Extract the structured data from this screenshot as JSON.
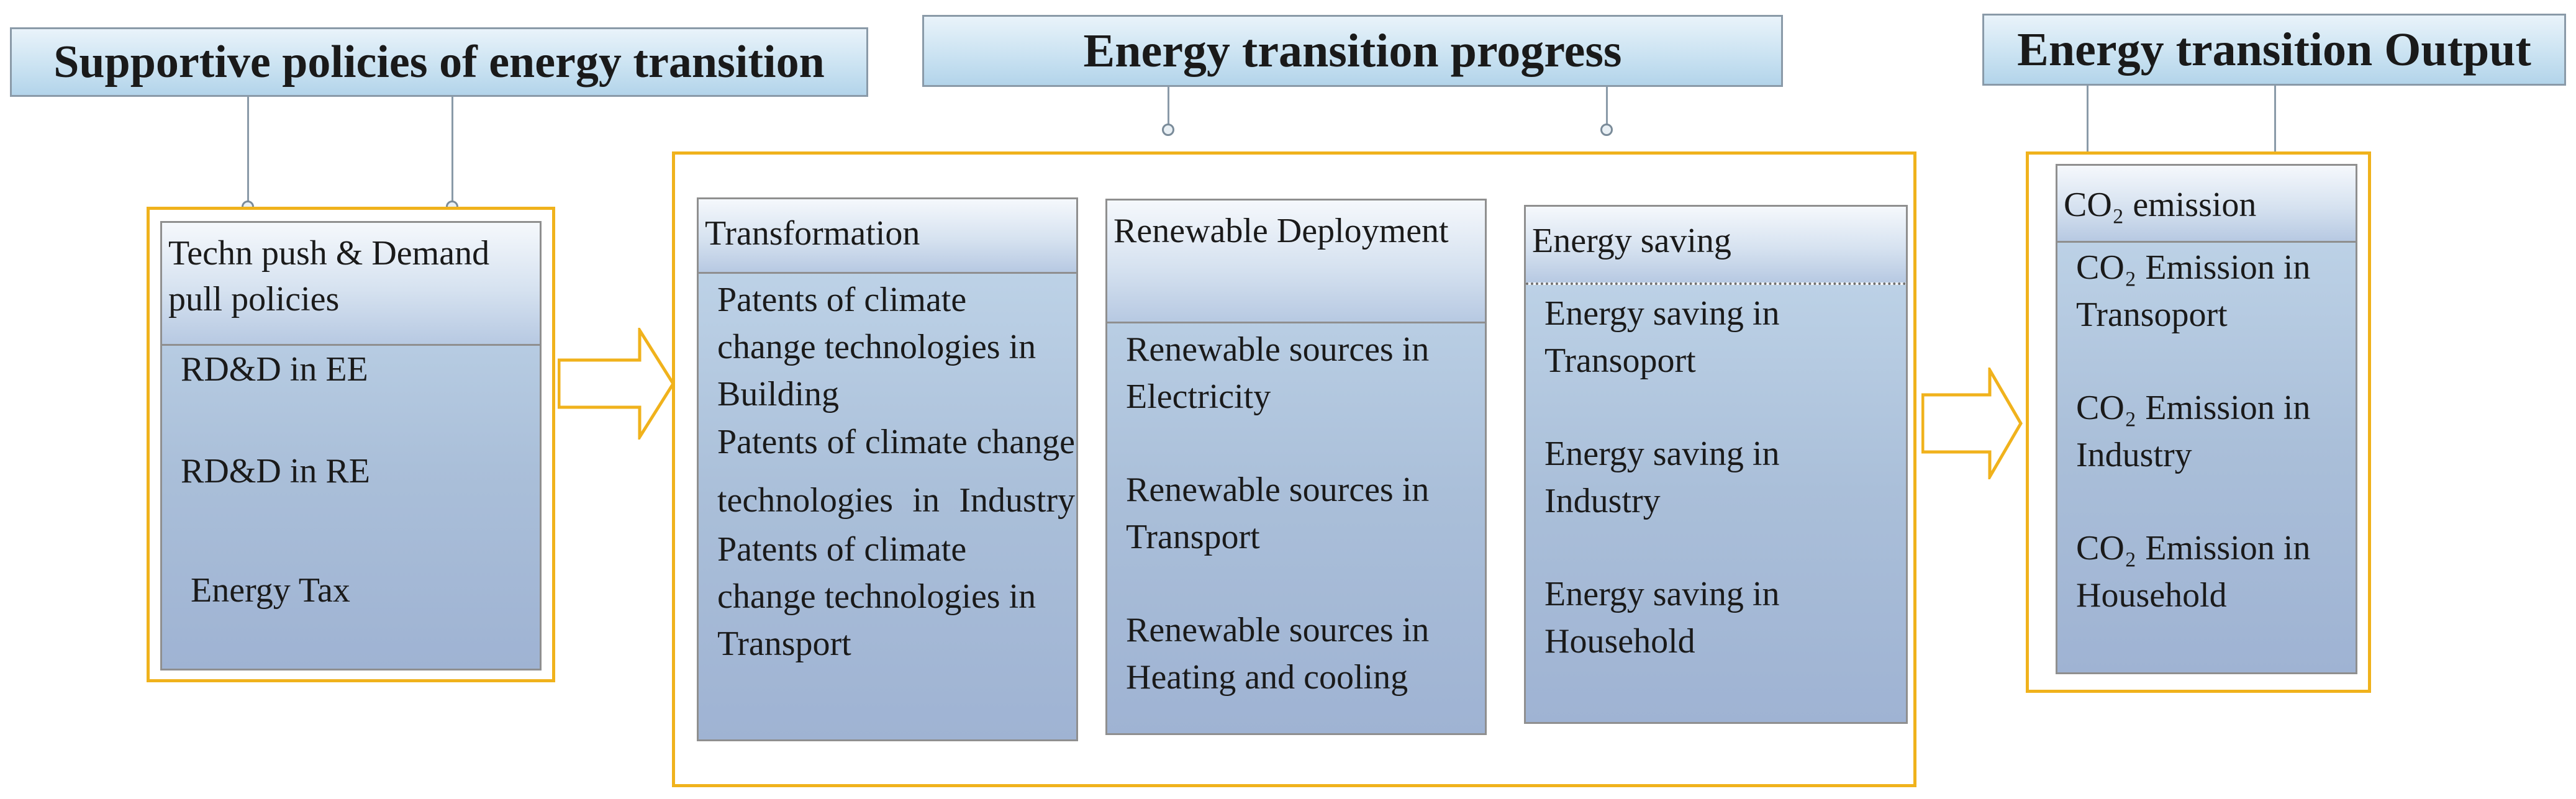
{
  "headers": {
    "policies": "Supportive policies of energy transition",
    "progress": "Energy transition progress",
    "output": "Energy transition Output"
  },
  "policies_card": {
    "title": "Techn push & Demand pull policies",
    "items": [
      "RD&D in EE",
      "RD&D in RE",
      "Energy Tax"
    ]
  },
  "transformation_card": {
    "title": "Transformation",
    "items": [
      "Patents of climate change technologies in Building",
      "Patents of climate change technologies in Industry",
      "Patents of climate change technologies in Transport"
    ]
  },
  "renewable_card": {
    "title": "Renewable Deployment",
    "items": [
      "Renewable sources in Electricity",
      "Renewable sources in Transport",
      "Renewable sources in Heating and cooling"
    ]
  },
  "saving_card": {
    "title": "Energy saving",
    "items": [
      "Energy saving in Transoport",
      "Energy saving in Industry",
      "Energy saving in Household"
    ]
  },
  "emission_card": {
    "title": "CO₂ emission",
    "items": [
      "CO₂ Emission in Transoport",
      "CO₂ Emission in Industry",
      "CO₂ Emission in Household"
    ]
  },
  "colors": {
    "frame": "#f0b21c",
    "arrow": "#f0b21c",
    "header_border": "#8a9aa8",
    "card_border": "#8f8f8f"
  }
}
